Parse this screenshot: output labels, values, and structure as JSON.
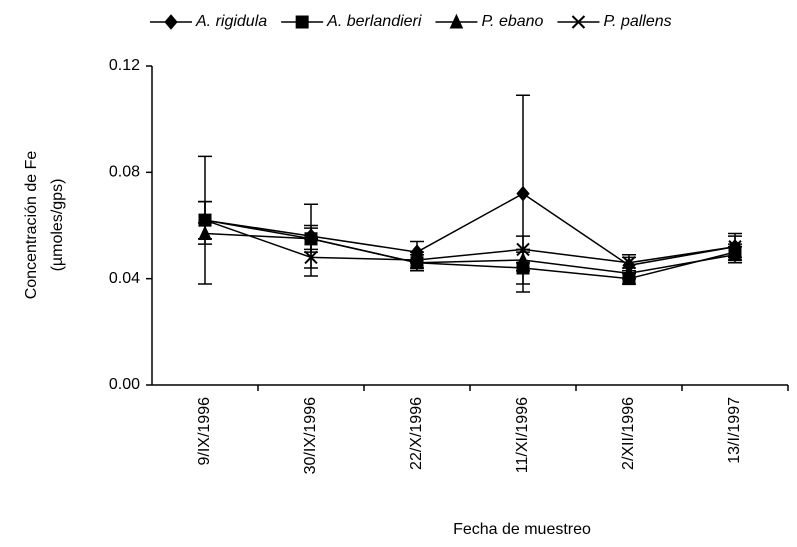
{
  "chart_data": {
    "type": "line",
    "xlabel": "Fecha de muestreo",
    "ylabel": [
      "Concentración de Fe",
      "(µmoles/gps)"
    ],
    "categories": [
      "9/IX/1996",
      "30/IX/1996",
      "22/X/1996",
      "11/XI/1996",
      "2/XII/1996",
      "13/I/1997"
    ],
    "ylim": [
      0,
      0.12
    ],
    "yticks": [
      {
        "value": 0,
        "label": "0.00"
      },
      0.04,
      0.08,
      0.12
    ],
    "grid": false,
    "legend": "top",
    "series": [
      {
        "name": "A. rigidula",
        "color": "#000000",
        "marker": "diamond",
        "values": [
          0.062,
          0.056,
          0.05,
          0.072,
          0.045,
          0.052
        ],
        "errors": [
          0.024,
          0.012,
          0.004,
          0.037,
          0.003,
          0.005
        ]
      },
      {
        "name": "A. berlandieri",
        "color": "#000000",
        "marker": "square",
        "values": [
          0.062,
          0.055,
          0.046,
          0.044,
          0.04,
          0.05
        ],
        "errors": [
          0.007,
          0.005,
          0.003,
          0.006,
          0.002,
          0.003
        ]
      },
      {
        "name": "P. ebano",
        "color": "#000000",
        "marker": "triangle",
        "values": [
          0.057,
          0.055,
          0.046,
          0.047,
          0.042,
          0.049
        ],
        "errors": [
          0.004,
          0.004,
          0.003,
          0.004,
          0.002,
          0.003
        ]
      },
      {
        "name": "P. pallens",
        "color": "#000000",
        "marker": "x",
        "values": [
          0.062,
          0.048,
          0.047,
          0.051,
          0.046,
          0.052
        ],
        "errors": [
          0.007,
          0.007,
          0.003,
          0.005,
          0.003,
          0.004
        ]
      }
    ]
  }
}
